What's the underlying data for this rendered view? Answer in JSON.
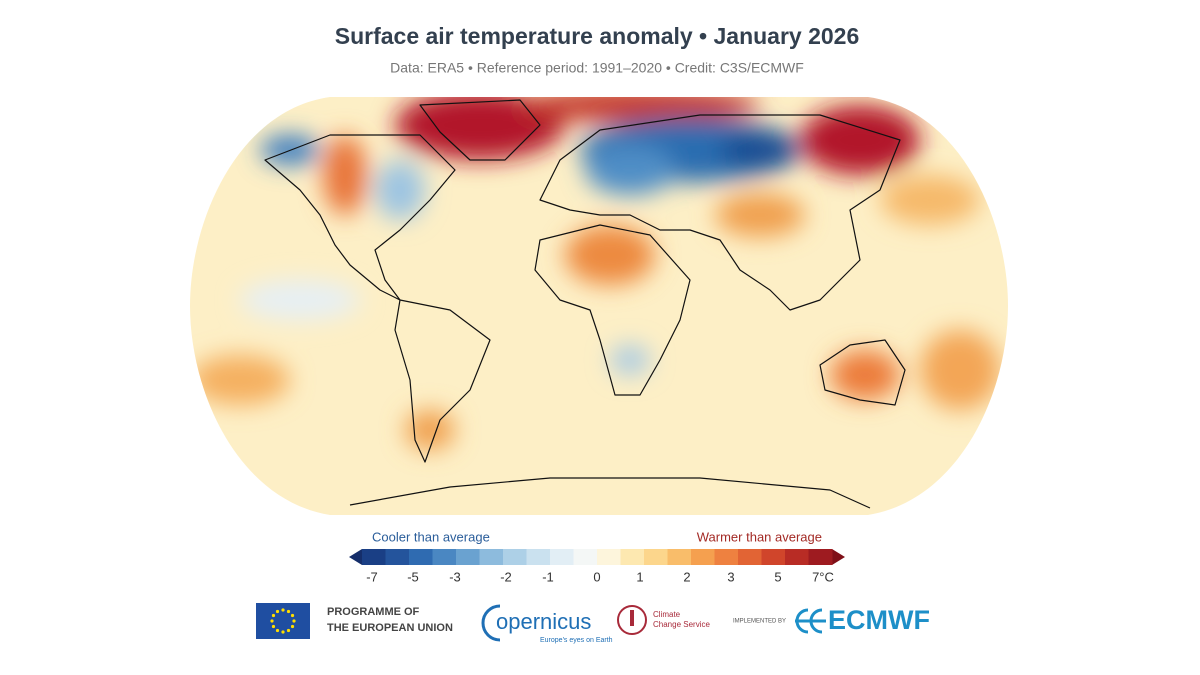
{
  "header": {
    "title": "Surface air temperature anomaly • January 2026",
    "subtitle": "Data: ERA5 • Reference period: 1991–2020 • Credit: C3S/ECMWF"
  },
  "legend": {
    "cooler_label": "Cooler than average",
    "warmer_label": "Warmer than average",
    "ticks": [
      "-7",
      "-5",
      "-3",
      "-2",
      "-1",
      "0",
      "1",
      "2",
      "3",
      "5",
      "7°C"
    ]
  },
  "footer": {
    "eu": [
      "PROGRAMME OF",
      "THE EUROPEAN UNION"
    ],
    "copernicus": {
      "name": "opernicus",
      "tagline": "Europe's eyes on Earth"
    },
    "c3s": [
      "Climate",
      "Change Service"
    ],
    "implemented_by": "IMPLEMENTED BY",
    "ecmwf": "ECMWF"
  }
}
